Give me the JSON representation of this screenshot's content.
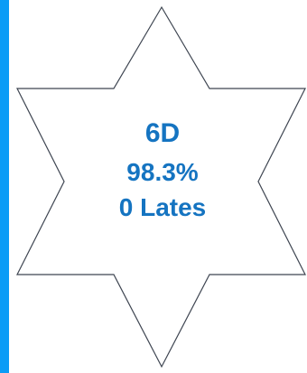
{
  "star": {
    "class_name": "6D",
    "attendance": "98.3%",
    "lates": "0 Lates"
  },
  "colors": {
    "left_bar": "#0b9cf6",
    "star_fill": "#ffffff",
    "star_stroke": "#3e4551",
    "text": "#1574c1"
  }
}
